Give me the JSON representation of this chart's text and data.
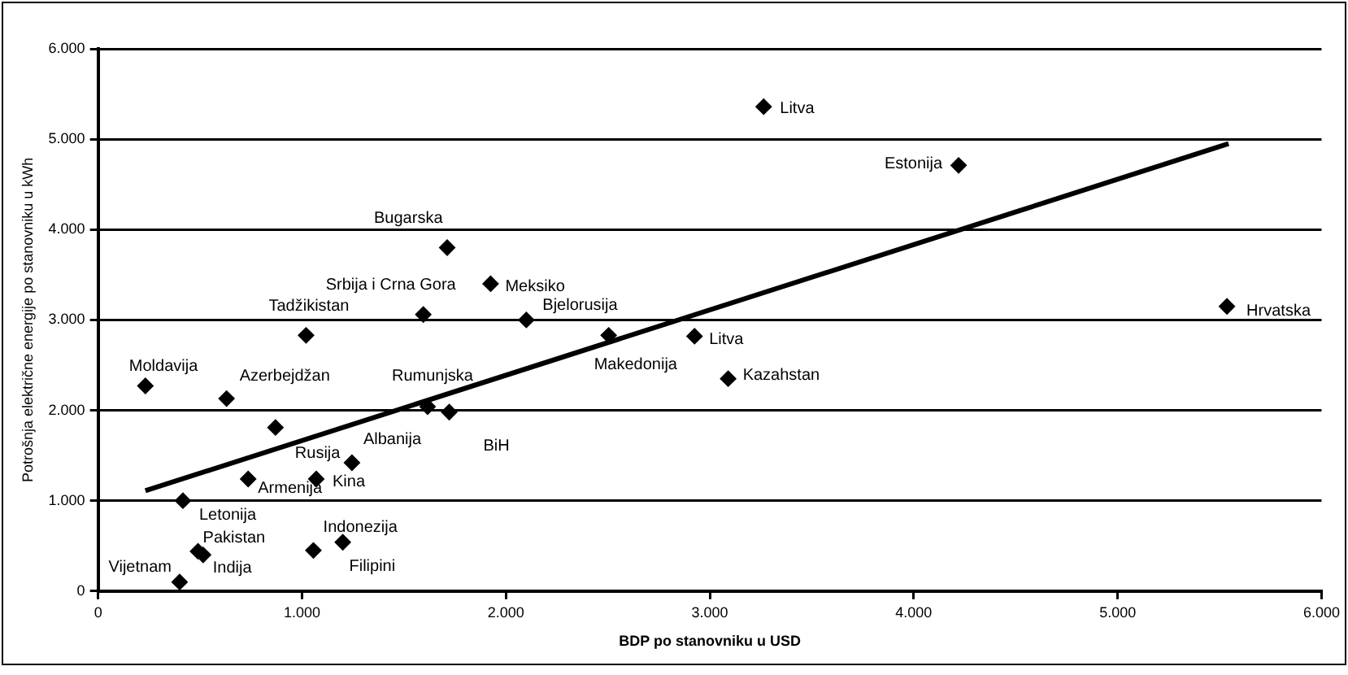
{
  "chart_data": {
    "type": "scatter",
    "xlabel": "BDP po stanovniku u USD",
    "ylabel": "Potrošnja električne energije po stanovniku u kWh",
    "xlim": [
      0,
      6000
    ],
    "xticks": [
      0,
      {
        "value": 1000,
        "label": "1.000"
      },
      {
        "value": 2000,
        "label": "2.000"
      },
      {
        "value": 3000,
        "label": "3.000"
      },
      {
        "value": 4000,
        "label": "4.000"
      },
      {
        "value": 5000,
        "label": "5.000"
      },
      {
        "value": 6000,
        "label": "6.000"
      }
    ],
    "ylim": [
      0,
      6000
    ],
    "yticks": [
      0,
      {
        "value": 1000,
        "label": "1.000"
      },
      {
        "value": 2000,
        "label": "2.000"
      },
      {
        "value": 3000,
        "label": "3.000"
      },
      {
        "value": 4000,
        "label": "4.000"
      },
      {
        "value": 5000,
        "label": "5.000"
      },
      {
        "value": 6000,
        "label": "6.000"
      }
    ],
    "grid": "y",
    "legend": false,
    "series": [
      {
        "marker": "diamond",
        "color": "#000000",
        "x": [
          400,
          490,
          515,
          416,
          736,
          1070,
          630,
          232,
          870,
          1245,
          1020,
          1200,
          1056,
          1712,
          1595,
          1925,
          2100,
          1616,
          1722,
          2504,
          2925,
          3090,
          3264,
          4220,
          5536
        ],
        "values": [
          100,
          440,
          400,
          1000,
          1240,
          1240,
          2130,
          2270,
          1810,
          1420,
          2830,
          540,
          450,
          3800,
          3060,
          3400,
          3000,
          2040,
          1980,
          2830,
          2820,
          2350,
          5360,
          4710,
          3150
        ]
      },
      {
        "type": "line",
        "color": "#000000",
        "x": [
          232,
          5544
        ],
        "values": [
          1110,
          4950
        ]
      }
    ],
    "annotations": [
      {
        "text": "Vijetnam",
        "x": 400,
        "y": 100
      },
      {
        "text": "Pakistan",
        "x": 490,
        "y": 440
      },
      {
        "text": "Indija",
        "x": 515,
        "y": 400
      },
      {
        "text": "Letonija",
        "x": 416,
        "y": 1000
      },
      {
        "text": "Armenija",
        "x": 736,
        "y": 1240
      },
      {
        "text": "Kina",
        "x": 1070,
        "y": 1240
      },
      {
        "text": "Azerbejdžan",
        "x": 630,
        "y": 2130
      },
      {
        "text": "Moldavija",
        "x": 232,
        "y": 2270
      },
      {
        "text": "Rusija",
        "x": 870,
        "y": 1810
      },
      {
        "text": "Albanija",
        "x": 1245,
        "y": 1420
      },
      {
        "text": "Tadžikistan",
        "x": 1020,
        "y": 2830
      },
      {
        "text": "Indonezija",
        "x": 1200,
        "y": 540
      },
      {
        "text": "Filipini",
        "x": 1056,
        "y": 450
      },
      {
        "text": "Bugarska",
        "x": 1712,
        "y": 3800
      },
      {
        "text": "Srbija i Crna Gora",
        "x": 1595,
        "y": 3060
      },
      {
        "text": "Meksiko",
        "x": 1925,
        "y": 3400
      },
      {
        "text": "Bjelorusija",
        "x": 2100,
        "y": 3000
      },
      {
        "text": "Rumunjska",
        "x": 1616,
        "y": 2040
      },
      {
        "text": "BiH",
        "x": 1722,
        "y": 1980
      },
      {
        "text": "Makedonija",
        "x": 2504,
        "y": 2830
      },
      {
        "text": "Litva",
        "x": 2925,
        "y": 2820
      },
      {
        "text": "Kazahstan",
        "x": 3090,
        "y": 2350
      },
      {
        "text": "Litva",
        "x": 3264,
        "y": 5360
      },
      {
        "text": "Estonija",
        "x": 4220,
        "y": 4710
      },
      {
        "text": "Hrvatska",
        "x": 5536,
        "y": 3150
      }
    ]
  }
}
